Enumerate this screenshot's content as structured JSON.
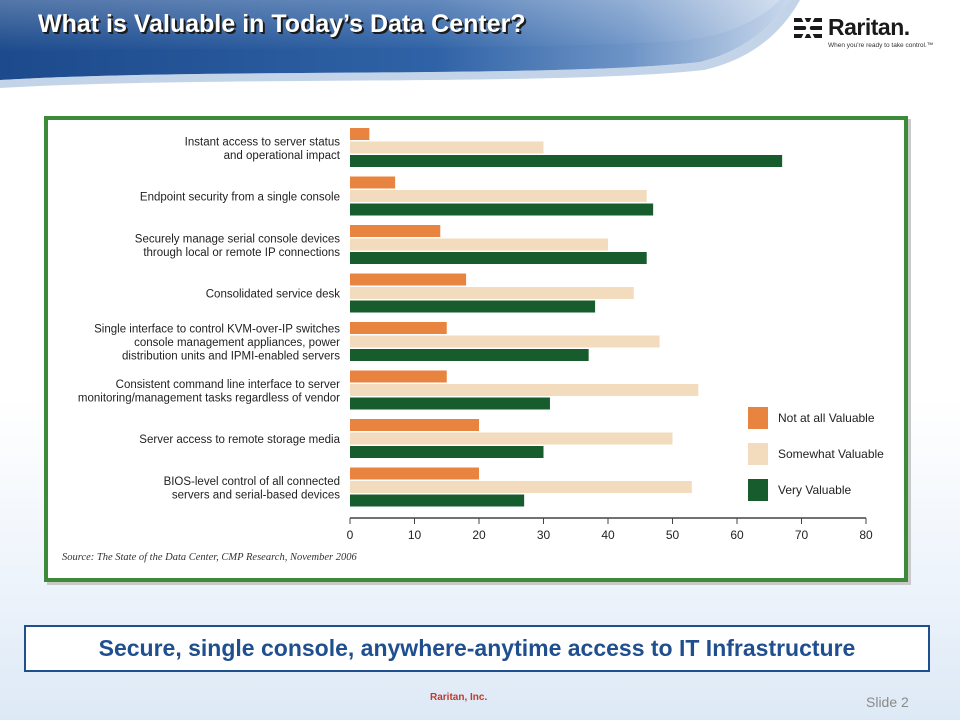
{
  "slide": {
    "title": "What is Valuable in Today’s Data Center?",
    "tagline": "Secure, single console, anywhere-anytime access to IT Infrastructure",
    "footer_company": "Raritan, Inc.",
    "slide_number": "Slide 2"
  },
  "logo": {
    "word": "Raritan.",
    "tagline": "When you're ready to take control.™",
    "icon": "raritan-logo-mark"
  },
  "colors": {
    "header_blue": "#1f4f8f",
    "frame_green": "#3d8a3a",
    "not_valuable": "#e8843f",
    "somewhat_valuable": "#f3dcbd",
    "very_valuable": "#175c2c"
  },
  "chart_data": {
    "type": "bar",
    "orientation": "horizontal",
    "categories": [
      [
        "Instant access to server status",
        "and operational impact"
      ],
      [
        "Endpoint security from a single console"
      ],
      [
        "Securely manage serial console devices",
        "through local or remote IP connections"
      ],
      [
        "Consolidated service desk"
      ],
      [
        "Single interface to control KVM-over-IP switches",
        "console management appliances, power",
        "distribution units and IPMI-enabled servers"
      ],
      [
        "Consistent command line interface to server",
        "monitoring/management tasks regardless of vendor"
      ],
      [
        "Server access to remote storage media"
      ],
      [
        "BIOS-level control of all connected",
        "servers and serial-based devices"
      ]
    ],
    "series": [
      {
        "name": "Not at all Valuable",
        "color": "#e8843f",
        "values": [
          3,
          7,
          14,
          18,
          15,
          15,
          20,
          20
        ]
      },
      {
        "name": "Somewhat Valuable",
        "color": "#f3dcbd",
        "values": [
          30,
          46,
          40,
          44,
          48,
          54,
          50,
          53
        ]
      },
      {
        "name": "Very Valuable",
        "color": "#175c2c",
        "values": [
          67,
          47,
          46,
          38,
          37,
          31,
          30,
          27
        ]
      }
    ],
    "xlim": [
      0,
      80
    ],
    "xticks": [
      0,
      10,
      20,
      30,
      40,
      50,
      60,
      70,
      80
    ],
    "legend_position": "right",
    "source": "Source: The State of the Data Center, CMP Research, November 2006"
  }
}
